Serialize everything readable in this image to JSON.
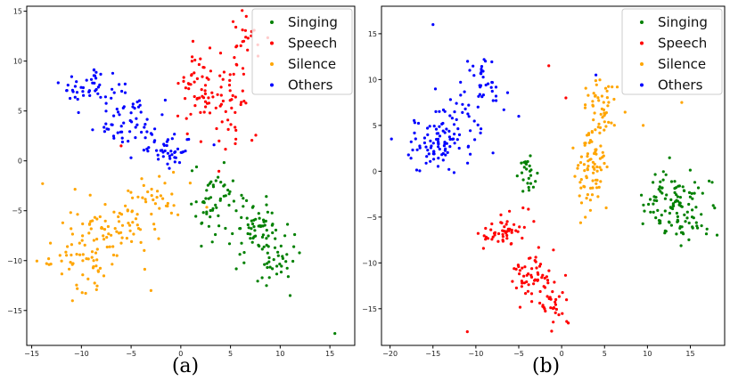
{
  "colors": {
    "Singing": "#008000",
    "Speech": "#ff0000",
    "Silence": "#ffa500",
    "Others": "#0000ff"
  },
  "chart_data": [
    {
      "type": "scatter",
      "caption": "(a)",
      "xlim": [
        -15.5,
        17.5
      ],
      "ylim": [
        -18.5,
        15.5
      ],
      "xticks": [
        -15,
        -10,
        -5,
        0,
        5,
        10,
        15
      ],
      "yticks": [
        -15,
        -10,
        -5,
        0,
        5,
        10,
        15
      ],
      "legend_position": "top-right",
      "series": [
        {
          "name": "Singing",
          "clusters": [
            {
              "cx": 3.5,
              "cy": -4.0,
              "sx": 1.3,
              "sy": 1.5,
              "n": 55
            },
            {
              "cx": 7.5,
              "cy": -7.0,
              "sx": 1.3,
              "sy": 1.5,
              "n": 55
            },
            {
              "cx": 10.0,
              "cy": -9.5,
              "sx": 1.0,
              "sy": 1.3,
              "n": 40
            }
          ],
          "outliers": [
            [
              15.5,
              -17.3
            ],
            [
              11.0,
              -13.5
            ]
          ]
        },
        {
          "name": "Speech",
          "clusters": [
            {
              "cx": 1.5,
              "cy": 7.5,
              "sx": 1.0,
              "sy": 1.5,
              "n": 45
            },
            {
              "cx": 5.0,
              "cy": 6.5,
              "sx": 1.5,
              "sy": 3.0,
              "n": 55
            },
            {
              "cx": 6.8,
              "cy": 12.5,
              "sx": 1.0,
              "sy": 1.3,
              "n": 20
            }
          ],
          "outliers": [
            [
              -0.3,
              4.5
            ],
            [
              -6.0,
              1.5
            ]
          ]
        },
        {
          "name": "Silence",
          "clusters": [
            {
              "cx": -10.0,
              "cy": -9.5,
              "sx": 1.8,
              "sy": 1.8,
              "n": 60
            },
            {
              "cx": -6.5,
              "cy": -6.5,
              "sx": 2.0,
              "sy": 1.8,
              "n": 60
            },
            {
              "cx": -2.5,
              "cy": -4.0,
              "sx": 1.5,
              "sy": 1.3,
              "n": 35
            }
          ],
          "outliers": [
            [
              -3.0,
              -13.0
            ],
            [
              -13.5,
              -10.3
            ]
          ]
        },
        {
          "name": "Others",
          "clusters": [
            {
              "cx": -9.5,
              "cy": 7.0,
              "sx": 1.5,
              "sy": 1.2,
              "n": 45
            },
            {
              "cx": -5.5,
              "cy": 4.0,
              "sx": 1.5,
              "sy": 1.5,
              "n": 55
            },
            {
              "cx": -1.5,
              "cy": 1.2,
              "sx": 1.5,
              "sy": 1.0,
              "n": 45
            }
          ],
          "outliers": []
        }
      ]
    },
    {
      "type": "scatter",
      "caption": "(b)",
      "xlim": [
        -21,
        19
      ],
      "ylim": [
        -19,
        18
      ],
      "xticks": [
        -20,
        -15,
        -10,
        -5,
        0,
        5,
        10,
        15
      ],
      "yticks": [
        -15,
        -10,
        -5,
        0,
        5,
        10,
        15
      ],
      "legend_position": "top-right",
      "series": [
        {
          "name": "Singing",
          "clusters": [
            {
              "cx": 13.5,
              "cy": -4.0,
              "sx": 2.0,
              "sy": 2.0,
              "n": 120
            },
            {
              "cx": -4.0,
              "cy": -0.5,
              "sx": 0.5,
              "sy": 1.3,
              "n": 25
            }
          ],
          "outliers": []
        },
        {
          "name": "Speech",
          "clusters": [
            {
              "cx": -6.5,
              "cy": -6.5,
              "sx": 1.3,
              "sy": 1.0,
              "n": 50
            },
            {
              "cx": -3.5,
              "cy": -11.5,
              "sx": 1.2,
              "sy": 1.5,
              "n": 50
            },
            {
              "cx": -1.2,
              "cy": -14.5,
              "sx": 0.9,
              "sy": 1.2,
              "n": 35
            }
          ],
          "outliers": [
            [
              -11.0,
              -17.5
            ],
            [
              -1.5,
              11.5
            ],
            [
              -4.5,
              -4.0
            ],
            [
              0.5,
              8.0
            ]
          ]
        },
        {
          "name": "Silence",
          "clusters": [
            {
              "cx": 3.5,
              "cy": 0.5,
              "sx": 1.0,
              "sy": 2.5,
              "n": 80
            },
            {
              "cx": 4.8,
              "cy": 7.5,
              "sx": 1.0,
              "sy": 1.6,
              "n": 45
            }
          ],
          "outliers": [
            [
              14.0,
              7.5
            ],
            [
              9.5,
              5.0
            ]
          ]
        },
        {
          "name": "Others",
          "clusters": [
            {
              "cx": -15.5,
              "cy": 2.5,
              "sx": 1.7,
              "sy": 1.5,
              "n": 60
            },
            {
              "cx": -12.5,
              "cy": 5.0,
              "sx": 1.5,
              "sy": 1.7,
              "n": 50
            },
            {
              "cx": -9.0,
              "cy": 9.5,
              "sx": 1.0,
              "sy": 1.3,
              "n": 35
            }
          ],
          "outliers": [
            [
              -15.0,
              16.0
            ],
            [
              -8.0,
              2.0
            ],
            [
              4.0,
              10.5
            ],
            [
              -5.0,
              6.0
            ]
          ]
        }
      ]
    }
  ]
}
